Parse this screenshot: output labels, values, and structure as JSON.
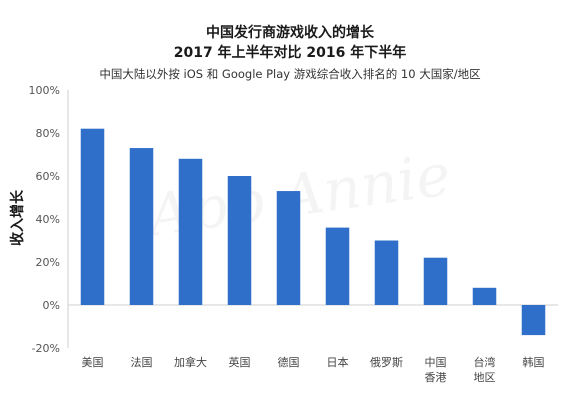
{
  "chart_data": {
    "type": "bar",
    "title_lines": [
      "中国发行商游戏收入的增长",
      "2017 年上半年对比 2016 年下半年"
    ],
    "subtitle": "中国大陆以外按 iOS 和 Google Play 游戏综合收入排名的 10 大国家/地区",
    "ylabel": "收入增长",
    "xlabel": "",
    "watermark": "App Annie",
    "categories": [
      [
        "美国"
      ],
      [
        "法国"
      ],
      [
        "加拿大"
      ],
      [
        "英国"
      ],
      [
        "德国"
      ],
      [
        "日本"
      ],
      [
        "俄罗斯"
      ],
      [
        "中国",
        "香港"
      ],
      [
        "台湾",
        "地区"
      ],
      [
        "韩国"
      ]
    ],
    "values": [
      82,
      73,
      68,
      60,
      53,
      36,
      30,
      22,
      8,
      -14
    ],
    "ylim": [
      -20,
      100
    ],
    "yticks": [
      -20,
      0,
      20,
      40,
      60,
      80,
      100
    ],
    "ytick_suffix": "%",
    "grid": false,
    "legend": "none",
    "colors": {
      "bar": "#2f6fc9",
      "axis": "#cfcfcf"
    }
  }
}
